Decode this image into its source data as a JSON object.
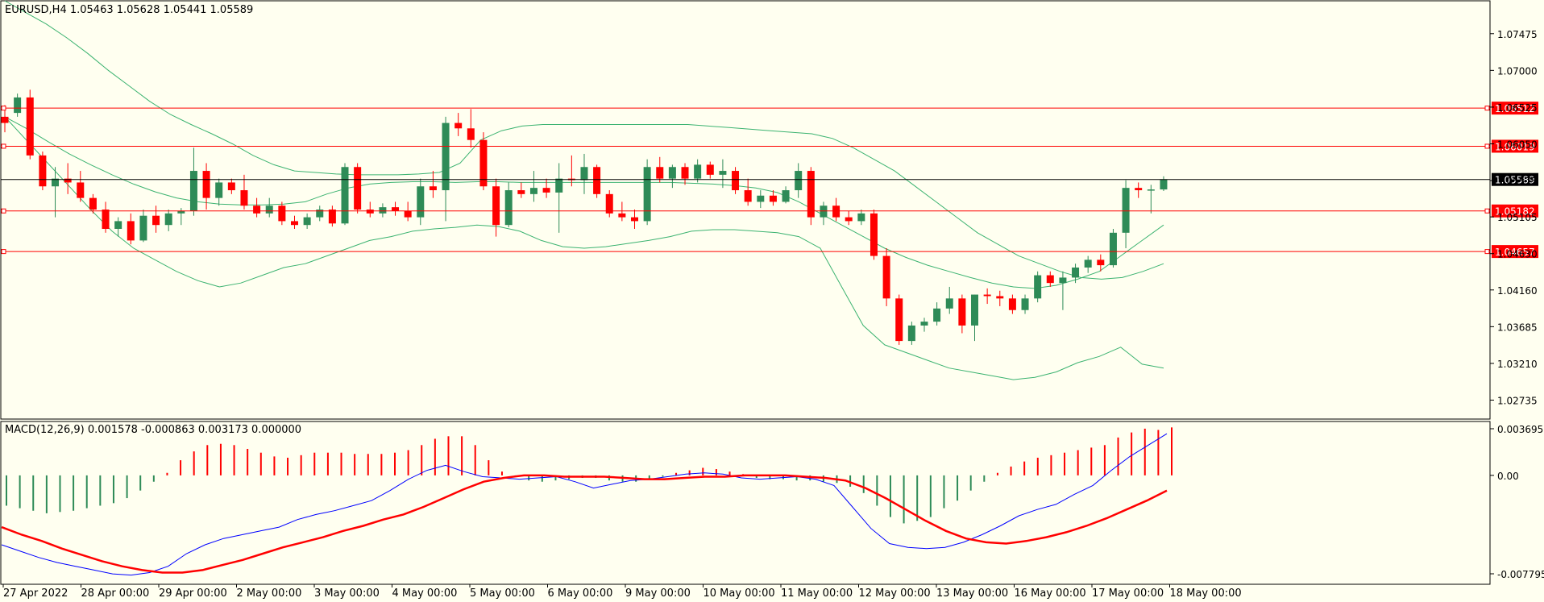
{
  "chart": {
    "symbol_info": "EURUSD,H4  1.05463 1.05628 1.05441 1.05589",
    "macd_info": "MACD(12,26,9) 0.001578 -0.000863 0.003173 0.000000",
    "colors": {
      "background": "#fffff0",
      "bull_candle": "#2e8b57",
      "bear_candle": "#ff0000",
      "bollinger": "#3cb371",
      "level_line": "#ff0000",
      "current_price_line": "#000000",
      "macd_line": "#0000ff",
      "signal_line": "#ff0000"
    },
    "price_axis_labels": [
      "1.07475",
      "1.07000",
      "1.06525",
      "1.06050",
      "1.05575",
      "1.05105",
      "1.04630",
      "1.04160",
      "1.03685",
      "1.03210",
      "1.02735"
    ],
    "macd_axis_labels": [
      "0.003695",
      "0.00",
      "-0.007795"
    ],
    "time_labels": [
      "27 Apr 2022",
      "28 Apr 00:00",
      "29 Apr 00:00",
      "2 May 00:00",
      "3 May 00:00",
      "4 May 00:00",
      "5 May 00:00",
      "6 May 00:00",
      "9 May 00:00",
      "10 May 00:00",
      "11 May 00:00",
      "12 May 00:00",
      "13 May 00:00",
      "16 May 00:00",
      "17 May 00:00",
      "18 May 00:00"
    ]
  },
  "chart_data": {
    "type": "candlestick",
    "symbol": "EURUSD",
    "timeframe": "H4",
    "last_bar": {
      "open": 1.05463,
      "high": 1.05628,
      "low": 1.05441,
      "close": 1.05589
    },
    "price_range": [
      1.0249,
      1.079
    ],
    "horizontal_levels": [
      1.06512,
      1.06019,
      1.05182,
      1.04657
    ],
    "current_price": 1.05589,
    "candles": [
      [
        1.064,
        1.0655,
        1.062,
        1.0632
      ],
      [
        1.0645,
        1.067,
        1.064,
        1.0665
      ],
      [
        1.0665,
        1.0675,
        1.0585,
        1.059
      ],
      [
        1.059,
        1.0595,
        1.0545,
        1.055
      ],
      [
        1.055,
        1.0575,
        1.051,
        1.056
      ],
      [
        1.056,
        1.058,
        1.054,
        1.0555
      ],
      [
        1.0555,
        1.057,
        1.053,
        1.0535
      ],
      [
        1.0535,
        1.054,
        1.0515,
        1.052
      ],
      [
        1.052,
        1.053,
        1.049,
        1.0495
      ],
      [
        1.0495,
        1.051,
        1.0485,
        1.0505
      ],
      [
        1.0505,
        1.0515,
        1.0475,
        1.048
      ],
      [
        1.048,
        1.052,
        1.0478,
        1.0512
      ],
      [
        1.0512,
        1.0525,
        1.049,
        1.05
      ],
      [
        1.05,
        1.052,
        1.0492,
        1.0515
      ],
      [
        1.0515,
        1.0522,
        1.05,
        1.0518
      ],
      [
        1.0518,
        1.06,
        1.0512,
        1.057
      ],
      [
        1.057,
        1.058,
        1.052,
        1.0535
      ],
      [
        1.0535,
        1.056,
        1.0525,
        1.0555
      ],
      [
        1.0555,
        1.056,
        1.054,
        1.0545
      ],
      [
        1.0545,
        1.0565,
        1.052,
        1.0525
      ],
      [
        1.0525,
        1.0535,
        1.051,
        1.0515
      ],
      [
        1.0515,
        1.0535,
        1.051,
        1.0525
      ],
      [
        1.0525,
        1.053,
        1.05,
        1.0505
      ],
      [
        1.0505,
        1.0512,
        1.0495,
        1.05
      ],
      [
        1.05,
        1.0515,
        1.0495,
        1.051
      ],
      [
        1.051,
        1.0525,
        1.0505,
        1.052
      ],
      [
        1.052,
        1.0525,
        1.0498,
        1.0502
      ],
      [
        1.0502,
        1.058,
        1.05,
        1.0575
      ],
      [
        1.0575,
        1.058,
        1.0515,
        1.052
      ],
      [
        1.052,
        1.053,
        1.051,
        1.0515
      ],
      [
        1.0515,
        1.0528,
        1.051,
        1.0523
      ],
      [
        1.0523,
        1.053,
        1.0512,
        1.0518
      ],
      [
        1.0518,
        1.053,
        1.0505,
        1.051
      ],
      [
        1.051,
        1.056,
        1.05,
        1.055
      ],
      [
        1.055,
        1.057,
        1.0535,
        1.0545
      ],
      [
        1.0545,
        1.064,
        1.0505,
        1.0632
      ],
      [
        1.0632,
        1.0645,
        1.0615,
        1.0625
      ],
      [
        1.0625,
        1.065,
        1.06,
        1.061
      ],
      [
        1.061,
        1.062,
        1.0545,
        1.055
      ],
      [
        1.055,
        1.056,
        1.0485,
        1.05
      ],
      [
        1.05,
        1.0555,
        1.0497,
        1.0545
      ],
      [
        1.0545,
        1.0555,
        1.0535,
        1.054
      ],
      [
        1.054,
        1.057,
        1.053,
        1.0548
      ],
      [
        1.0548,
        1.056,
        1.0535,
        1.0542
      ],
      [
        1.0542,
        1.058,
        1.049,
        1.056
      ],
      [
        1.056,
        1.059,
        1.055,
        1.0558
      ],
      [
        1.0558,
        1.0592,
        1.054,
        1.0575
      ],
      [
        1.0575,
        1.0578,
        1.0535,
        1.054
      ],
      [
        1.054,
        1.0545,
        1.051,
        1.0515
      ],
      [
        1.0515,
        1.053,
        1.0505,
        1.051
      ],
      [
        1.051,
        1.052,
        1.0495,
        1.0505
      ],
      [
        1.0505,
        1.0585,
        1.05,
        1.0575
      ],
      [
        1.0575,
        1.0588,
        1.0555,
        1.056
      ],
      [
        1.056,
        1.0578,
        1.0548,
        1.0575
      ],
      [
        1.0575,
        1.058,
        1.0552,
        1.056
      ],
      [
        1.056,
        1.0585,
        1.0555,
        1.0578
      ],
      [
        1.0578,
        1.0582,
        1.056,
        1.0565
      ],
      [
        1.0565,
        1.0585,
        1.0548,
        1.057
      ],
      [
        1.057,
        1.0575,
        1.054,
        1.0545
      ],
      [
        1.0545,
        1.056,
        1.0525,
        1.053
      ],
      [
        1.053,
        1.0545,
        1.0522,
        1.0538
      ],
      [
        1.0538,
        1.0545,
        1.0525,
        1.053
      ],
      [
        1.053,
        1.055,
        1.0528,
        1.0545
      ],
      [
        1.0545,
        1.058,
        1.0535,
        1.057
      ],
      [
        1.057,
        1.0575,
        1.05,
        1.051
      ],
      [
        1.051,
        1.053,
        1.05,
        1.0525
      ],
      [
        1.0525,
        1.0535,
        1.0505,
        1.051
      ],
      [
        1.051,
        1.0518,
        1.05,
        1.0505
      ],
      [
        1.0505,
        1.052,
        1.05,
        1.0515
      ],
      [
        1.0515,
        1.052,
        1.0455,
        1.046
      ],
      [
        1.046,
        1.047,
        1.0395,
        1.0405
      ],
      [
        1.0405,
        1.041,
        1.0345,
        1.035
      ],
      [
        1.035,
        1.0375,
        1.0345,
        1.037
      ],
      [
        1.037,
        1.038,
        1.0362,
        1.0375
      ],
      [
        1.0375,
        1.04,
        1.037,
        1.0392
      ],
      [
        1.0392,
        1.042,
        1.0385,
        1.0405
      ],
      [
        1.0405,
        1.041,
        1.036,
        1.037
      ],
      [
        1.037,
        1.041,
        1.035,
        1.041
      ],
      [
        1.041,
        1.0418,
        1.0398,
        1.0408
      ],
      [
        1.0408,
        1.0415,
        1.0395,
        1.0405
      ],
      [
        1.0405,
        1.041,
        1.0385,
        1.039
      ],
      [
        1.039,
        1.041,
        1.0385,
        1.0405
      ],
      [
        1.0405,
        1.044,
        1.04,
        1.0435
      ],
      [
        1.0435,
        1.044,
        1.042,
        1.0425
      ],
      [
        1.0425,
        1.044,
        1.039,
        1.0432
      ],
      [
        1.0432,
        1.045,
        1.0425,
        1.0445
      ],
      [
        1.0445,
        1.046,
        1.0438,
        1.0455
      ],
      [
        1.0455,
        1.0462,
        1.044,
        1.0448
      ],
      [
        1.0448,
        1.0495,
        1.0445,
        1.049
      ],
      [
        1.049,
        1.0558,
        1.047,
        1.0548
      ],
      [
        1.0548,
        1.0555,
        1.0535,
        1.0545
      ],
      [
        1.0545,
        1.0552,
        1.0515,
        1.0546
      ],
      [
        1.0546,
        1.0563,
        1.0544,
        1.0559
      ]
    ],
    "bollinger_upper": [
      1.079,
      1.0775,
      1.076,
      1.0742,
      1.0722,
      1.07,
      1.068,
      1.066,
      1.0643,
      1.063,
      1.0618,
      1.0605,
      1.059,
      1.0578,
      1.057,
      1.0568,
      1.0566,
      1.0565,
      1.0565,
      1.0565,
      1.0566,
      1.0568,
      1.058,
      1.061,
      1.0622,
      1.0628,
      1.063,
      1.063,
      1.063,
      1.063,
      1.063,
      1.063,
      1.063,
      1.063,
      1.0628,
      1.0626,
      1.0624,
      1.0622,
      1.062,
      1.0618,
      1.0612,
      1.06,
      1.0585,
      1.057,
      1.055,
      1.053,
      1.051,
      1.049,
      1.0475,
      1.046,
      1.045,
      1.044,
      1.0432,
      1.043,
      1.0432,
      1.044,
      1.045
    ],
    "bollinger_middle": [
      1.064,
      1.0625,
      1.0608,
      1.0592,
      1.0578,
      1.0565,
      1.0553,
      1.0543,
      1.0535,
      1.053,
      1.0527,
      1.0526,
      1.0526,
      1.0527,
      1.053,
      1.054,
      1.0548,
      1.0553,
      1.0555,
      1.0556,
      1.0556,
      1.0555,
      1.0556,
      1.0556,
      1.0555,
      1.0555,
      1.0555,
      1.0555,
      1.0555,
      1.0555,
      1.0555,
      1.0555,
      1.0554,
      1.0553,
      1.0551,
      1.0548,
      1.0542,
      1.053,
      1.0515,
      1.05,
      1.0485,
      1.047,
      1.0458,
      1.0448,
      1.044,
      1.0432,
      1.0425,
      1.042,
      1.0418,
      1.0422,
      1.043,
      1.044,
      1.046,
      1.048,
      1.05
    ],
    "bollinger_lower": [
      1.064,
      1.061,
      1.058,
      1.055,
      1.052,
      1.0492,
      1.047,
      1.0455,
      1.044,
      1.0428,
      1.042,
      1.0425,
      1.0435,
      1.0445,
      1.045,
      1.046,
      1.047,
      1.048,
      1.0485,
      1.0492,
      1.0495,
      1.0497,
      1.05,
      1.0498,
      1.0492,
      1.048,
      1.0472,
      1.047,
      1.0472,
      1.0476,
      1.048,
      1.0485,
      1.0492,
      1.0494,
      1.0494,
      1.0492,
      1.049,
      1.0485,
      1.047,
      1.042,
      1.037,
      1.0345,
      1.0335,
      1.0325,
      1.0315,
      1.031,
      1.0305,
      1.03,
      1.0303,
      1.031,
      1.0322,
      1.033,
      1.0342,
      1.032,
      1.0315
    ],
    "macd_histogram": [
      -0.0024,
      -0.0026,
      -0.0028,
      -0.003,
      -0.0029,
      -0.0028,
      -0.0026,
      -0.0024,
      -0.0022,
      -0.0018,
      -0.0012,
      -0.0005,
      0.0002,
      0.0012,
      0.0019,
      0.0024,
      0.0025,
      0.0024,
      0.0021,
      0.0018,
      0.0015,
      0.0014,
      0.0016,
      0.0018,
      0.0018,
      0.0018,
      0.0017,
      0.0017,
      0.0017,
      0.0018,
      0.002,
      0.0024,
      0.0029,
      0.0031,
      0.0031,
      0.0024,
      0.0012,
      0.0003,
      -0.0001,
      -0.0004,
      -0.0005,
      -0.0004,
      -0.0003,
      -0.0002,
      -0.0002,
      -0.0004,
      -0.0005,
      -0.0005,
      -0.0003,
      -0.0001,
      0.0002,
      0.0004,
      0.0006,
      0.0005,
      0.0003,
      0.0001,
      -0.0002,
      -0.0003,
      -0.0003,
      -0.0004,
      -0.0004,
      -0.0005,
      -0.0006,
      -0.0009,
      -0.0014,
      -0.0024,
      -0.0033,
      -0.0038,
      -0.0036,
      -0.0033,
      -0.0026,
      -0.002,
      -0.0012,
      -0.0005,
      0.0002,
      0.0007,
      0.0011,
      0.0014,
      0.0016,
      0.0018,
      0.002,
      0.0022,
      0.0024,
      0.003,
      0.0034,
      0.0037,
      0.0036,
      0.0038
    ],
    "macd_main": [
      -0.0055,
      -0.006,
      -0.0065,
      -0.0069,
      -0.0072,
      -0.0075,
      -0.0078,
      -0.0079,
      -0.0077,
      -0.0072,
      -0.0062,
      -0.0055,
      -0.005,
      -0.0047,
      -0.0044,
      -0.0041,
      -0.0035,
      -0.0031,
      -0.0028,
      -0.0024,
      -0.002,
      -0.0012,
      -0.0003,
      0.0004,
      0.0008,
      0.0003,
      -0.0001,
      -0.0002,
      -0.0003,
      -0.0002,
      -0.0001,
      -0.0005,
      -0.001,
      -0.0007,
      -0.0004,
      -0.0003,
      -0.0001,
      0.0001,
      0.0002,
      0.0001,
      -0.0002,
      -0.0003,
      -0.0002,
      -0.0001,
      -0.0003,
      -0.0008,
      -0.0025,
      -0.0042,
      -0.0054,
      -0.0057,
      -0.0058,
      -0.0057,
      -0.0053,
      -0.0047,
      -0.004,
      -0.0032,
      -0.0027,
      -0.0023,
      -0.0015,
      -0.0008,
      0.0004,
      0.0015,
      0.0024,
      0.0033
    ],
    "macd_signal": [
      -0.0041,
      -0.0047,
      -0.0052,
      -0.0058,
      -0.0063,
      -0.0068,
      -0.0072,
      -0.0075,
      -0.0077,
      -0.0077,
      -0.0075,
      -0.0071,
      -0.0067,
      -0.0062,
      -0.0057,
      -0.0053,
      -0.0049,
      -0.0044,
      -0.004,
      -0.0035,
      -0.0031,
      -0.0025,
      -0.0018,
      -0.0011,
      -0.0005,
      -0.0002,
      0.0,
      0.0,
      -0.0001,
      -0.0001,
      -0.0001,
      -0.0002,
      -0.0003,
      -0.0003,
      -0.0002,
      -0.0001,
      -0.0001,
      0.0,
      0.0,
      0.0,
      -0.0001,
      -0.0002,
      -0.0004,
      -0.001,
      -0.0018,
      -0.0027,
      -0.0036,
      -0.0044,
      -0.005,
      -0.0053,
      -0.0054,
      -0.0052,
      -0.0049,
      -0.0045,
      -0.004,
      -0.0034,
      -0.0027,
      -0.002,
      -0.0012
    ],
    "macd_range": [
      -0.007795,
      0.003695
    ]
  }
}
